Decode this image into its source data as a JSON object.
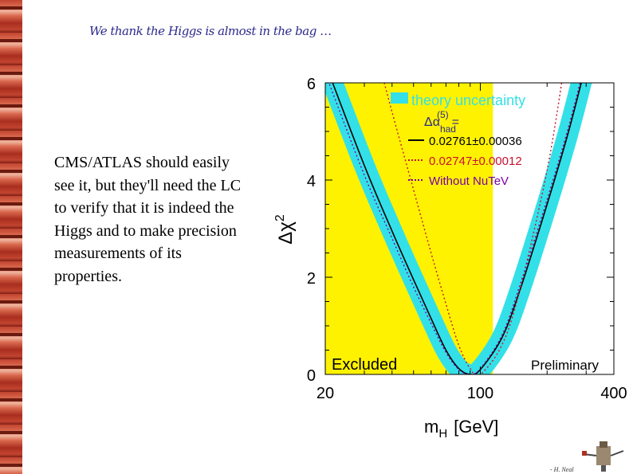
{
  "slide": {
    "title": "We thank the Higgs is almost in the bag …",
    "body_text": "CMS/ATLAS should easily see it, but they'll need the LC to verify that it is indeed the Higgs and to make precision measurements of its properties.",
    "credit": "- H. Neal"
  },
  "chart_data": {
    "type": "line",
    "title": "",
    "xlabel": "m",
    "xlabel_sub": "H",
    "xlabel_unit": "[GeV]",
    "ylabel": "Δχ",
    "ylabel_sup": "2",
    "xscale": "log",
    "xlim": [
      20,
      400
    ],
    "ylim": [
      0,
      6
    ],
    "xticks": [
      20,
      100,
      400
    ],
    "yticks": [
      0,
      2,
      4,
      6
    ],
    "excluded_region": {
      "x": [
        20,
        114
      ],
      "label": "Excluded",
      "color": "#fff200"
    },
    "preliminary_label": "Preliminary",
    "legend": {
      "band_label": "theory uncertainty",
      "header": "Δα",
      "header_sub": "had",
      "header_sup": "(5)",
      "header_eq": "=",
      "entries": [
        {
          "label": "0.02761±0.00036",
          "color": "#000000",
          "style": "solid"
        },
        {
          "label": "0.02747±0.00012",
          "color": "#c8102e",
          "style": "dotted"
        },
        {
          "label": "Without NuTeV",
          "color": "#7a00a8",
          "style": "dotted"
        }
      ]
    },
    "series": [
      {
        "name": "0.02761±0.00036",
        "x": [
          20,
          30,
          40,
          50,
          60,
          70,
          80,
          90,
          100,
          125,
          150,
          200,
          250,
          300
        ],
        "y": [
          6.4,
          4.3,
          2.95,
          1.95,
          1.15,
          0.5,
          0.12,
          0.0,
          0.1,
          0.75,
          1.7,
          3.5,
          5.0,
          6.4
        ],
        "color": "#000000",
        "band_color": "#33e0e8"
      },
      {
        "name": "0.02747±0.00012",
        "x": [
          35,
          40,
          50,
          60,
          70,
          80,
          90,
          100,
          125,
          150,
          200,
          240
        ],
        "y": [
          6.4,
          5.4,
          3.8,
          2.5,
          1.45,
          0.6,
          0.12,
          0.0,
          0.6,
          1.7,
          4.2,
          6.4
        ],
        "color": "#c8102e"
      },
      {
        "name": "Without NuTeV",
        "x": [
          20,
          30,
          40,
          50,
          60,
          70,
          80,
          90,
          100,
          125,
          150,
          200,
          250,
          300
        ],
        "y": [
          6.2,
          4.1,
          2.8,
          1.8,
          1.05,
          0.45,
          0.1,
          0.0,
          0.12,
          0.8,
          1.8,
          3.6,
          5.1,
          6.5
        ],
        "color": "#7a00a8"
      }
    ]
  }
}
